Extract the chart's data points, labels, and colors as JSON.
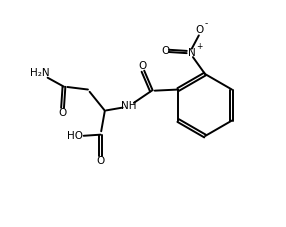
{
  "bg_color": "#ffffff",
  "line_color": "#000000",
  "line_width": 1.4,
  "font_size": 7.5,
  "fig_width": 2.86,
  "fig_height": 2.27,
  "dpi": 100,
  "xlim": [
    0,
    10
  ],
  "ylim": [
    0,
    8
  ]
}
